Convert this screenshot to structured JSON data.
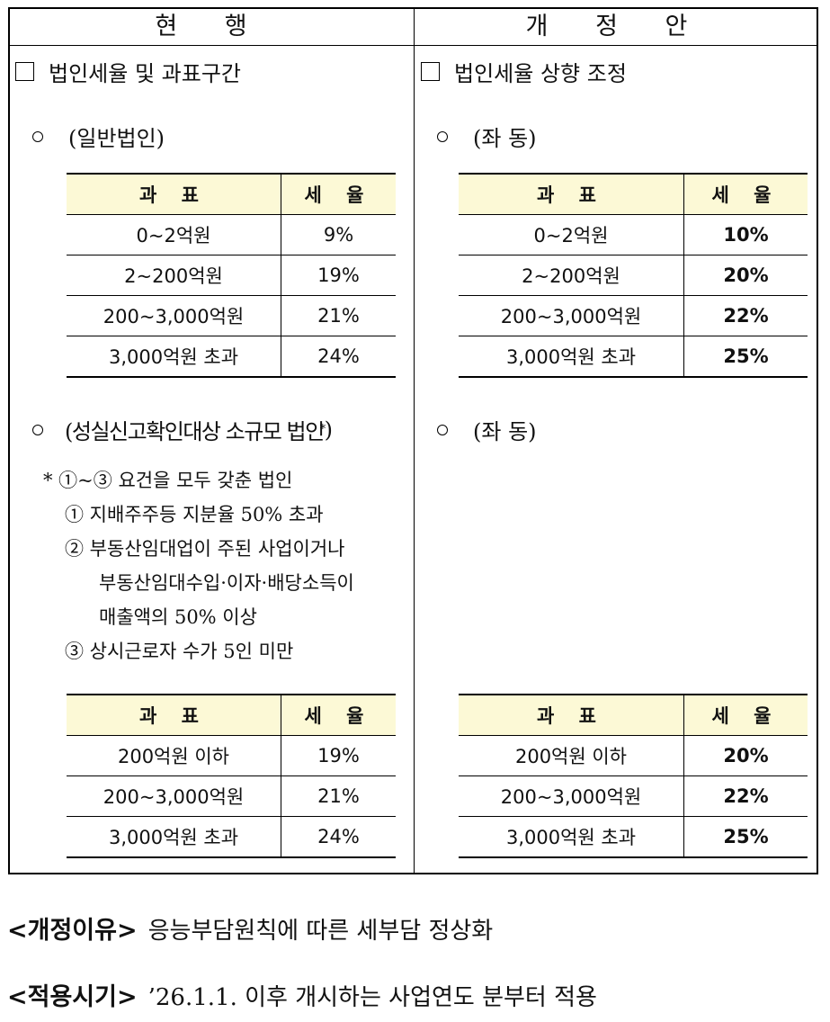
{
  "columns": {
    "current": "현 행",
    "proposed": "개 정 안"
  },
  "left": {
    "section_title": "법인세율 및 과표구간",
    "group1_label": "(일반법인)",
    "group2_label": "(성실신고확인대상 소규모 법인",
    "group2_mark": "*",
    "group2_close": ")",
    "notes": [
      "* ①~③ 요건을 모두 갖춘 법인",
      "① 지배주주등 지분율 50% 초과",
      "② 부동산임대업이 주된 사업이거나",
      "부동산임대수입·이자·배당소득이",
      "매출액의 50% 이상",
      "③ 상시근로자 수가 5인 미만"
    ],
    "table1": {
      "headers": [
        "과 표",
        "세 율"
      ],
      "rows": [
        [
          "0~2억원",
          "9%"
        ],
        [
          "2~200억원",
          "19%"
        ],
        [
          "200~3,000억원",
          "21%"
        ],
        [
          "3,000억원 초과",
          "24%"
        ]
      ]
    },
    "table2": {
      "headers": [
        "과 표",
        "세 율"
      ],
      "rows": [
        [
          "200억원 이하",
          "19%"
        ],
        [
          "200~3,000억원",
          "21%"
        ],
        [
          "3,000억원 초과",
          "24%"
        ]
      ]
    }
  },
  "right": {
    "section_title": "법인세율 상향 조정",
    "group1_label": "(좌 동)",
    "group2_label": "(좌 동)",
    "table1": {
      "headers": [
        "과 표",
        "세 율"
      ],
      "rows": [
        [
          "0~2억원",
          "10%"
        ],
        [
          "2~200억원",
          "20%"
        ],
        [
          "200~3,000억원",
          "22%"
        ],
        [
          "3,000억원 초과",
          "25%"
        ]
      ]
    },
    "table2": {
      "headers": [
        "과 표",
        "세 율"
      ],
      "rows": [
        [
          "200억원 이하",
          "20%"
        ],
        [
          "200~3,000억원",
          "22%"
        ],
        [
          "3,000억원 초과",
          "25%"
        ]
      ]
    }
  },
  "footer": {
    "reason_label": "<개정이유>",
    "reason_text": "응능부담원칙에 따른 세부담 정상화",
    "effective_label": "<적용시기>",
    "effective_text": "’26.1.1. 이후 개시하는 사업연도 분부터 적용"
  }
}
